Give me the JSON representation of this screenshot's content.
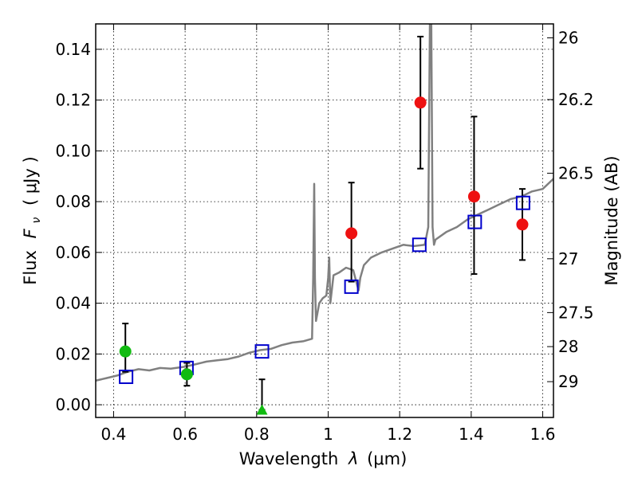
{
  "chart_data": {
    "type": "scatter",
    "xlabel_prefix": "Wavelength",
    "xlabel_symbol": "λ",
    "xlabel_unit": "(μm)",
    "ylabel_prefix": "Flux",
    "ylabel_symbol": "F",
    "ylabel_subscript": "ν",
    "ylabel_unit": "( μJy )",
    "y2label": "Magnitude (AB)",
    "xlim": [
      0.35,
      1.63
    ],
    "ylim": [
      -0.005,
      0.15
    ],
    "grid": true,
    "x_ticks": [
      {
        "value": 0.4,
        "label": "0.4"
      },
      {
        "value": 0.6,
        "label": "0.6"
      },
      {
        "value": 0.8,
        "label": "0.8"
      },
      {
        "value": 1.0,
        "label": "1"
      },
      {
        "value": 1.2,
        "label": "1.2"
      },
      {
        "value": 1.4,
        "label": "1.4"
      },
      {
        "value": 1.6,
        "label": "1.6"
      }
    ],
    "y_ticks": [
      {
        "value": 0.0,
        "label": "0.00"
      },
      {
        "value": 0.02,
        "label": "0.02"
      },
      {
        "value": 0.04,
        "label": "0.04"
      },
      {
        "value": 0.06,
        "label": "0.06"
      },
      {
        "value": 0.08,
        "label": "0.08"
      },
      {
        "value": 0.1,
        "label": "0.10"
      },
      {
        "value": 0.12,
        "label": "0.12"
      },
      {
        "value": 0.14,
        "label": "0.14"
      }
    ],
    "y2_ticks": [
      {
        "label": "26",
        "flux": 0.1445
      },
      {
        "label": "26.2",
        "flux": 0.1202
      },
      {
        "label": "26.5",
        "flux": 0.0912
      },
      {
        "label": "27",
        "flux": 0.0575
      },
      {
        "label": "27.5",
        "flux": 0.0363
      },
      {
        "label": "28",
        "flux": 0.0229
      },
      {
        "label": "29",
        "flux": 0.0091
      }
    ],
    "colors": {
      "spectrum": "#808080",
      "model_box": "#0000cc",
      "detection": "#ee1111",
      "blue_detection": "#11bb11",
      "errorbar": "#000000"
    },
    "spectrum": {
      "x": [
        0.35,
        0.38,
        0.41,
        0.44,
        0.47,
        0.5,
        0.53,
        0.56,
        0.6,
        0.63,
        0.66,
        0.69,
        0.72,
        0.75,
        0.78,
        0.81,
        0.84,
        0.87,
        0.9,
        0.93,
        0.955,
        0.958,
        0.961,
        0.963,
        0.966,
        0.97,
        0.975,
        0.985,
        0.995,
        1.0,
        1.003,
        1.006,
        1.015,
        1.03,
        1.05,
        1.07,
        1.085,
        1.09,
        1.1,
        1.12,
        1.15,
        1.18,
        1.21,
        1.24,
        1.27,
        1.28,
        1.285,
        1.288,
        1.292,
        1.296,
        1.3,
        1.33,
        1.36,
        1.39,
        1.42,
        1.45,
        1.48,
        1.51,
        1.54,
        1.57,
        1.6,
        1.63
      ],
      "y": [
        0.0095,
        0.0105,
        0.0115,
        0.013,
        0.014,
        0.0135,
        0.0145,
        0.0142,
        0.015,
        0.016,
        0.017,
        0.0175,
        0.018,
        0.019,
        0.0205,
        0.0215,
        0.022,
        0.0235,
        0.0245,
        0.025,
        0.026,
        0.05,
        0.087,
        0.05,
        0.033,
        0.036,
        0.04,
        0.042,
        0.043,
        0.05,
        0.058,
        0.04,
        0.051,
        0.052,
        0.054,
        0.053,
        0.045,
        0.05,
        0.055,
        0.058,
        0.06,
        0.0615,
        0.063,
        0.0625,
        0.063,
        0.07,
        0.16,
        0.16,
        0.07,
        0.063,
        0.065,
        0.068,
        0.07,
        0.073,
        0.075,
        0.077,
        0.079,
        0.081,
        0.082,
        0.084,
        0.085,
        0.089
      ]
    },
    "model_points": {
      "x": [
        0.435,
        0.604,
        0.815,
        1.065,
        1.255,
        1.41,
        1.545
      ],
      "y": [
        0.011,
        0.0145,
        0.021,
        0.0465,
        0.063,
        0.072,
        0.0795
      ]
    },
    "detections_red": {
      "x": [
        1.065,
        1.258,
        1.408,
        1.543
      ],
      "y": [
        0.0675,
        0.119,
        0.082,
        0.071
      ],
      "err_low": [
        0.0485,
        0.093,
        0.0515,
        0.057
      ],
      "err_high": [
        0.0875,
        0.145,
        0.1135,
        0.085
      ]
    },
    "detections_green": {
      "x": [
        0.433,
        0.605
      ],
      "y": [
        0.021,
        0.012
      ],
      "err_low": [
        0.013,
        0.0075
      ],
      "err_high": [
        0.032,
        0.0165
      ]
    },
    "upper_limit_green": {
      "x": 0.815,
      "y": -0.002,
      "err_high": 0.01
    }
  }
}
